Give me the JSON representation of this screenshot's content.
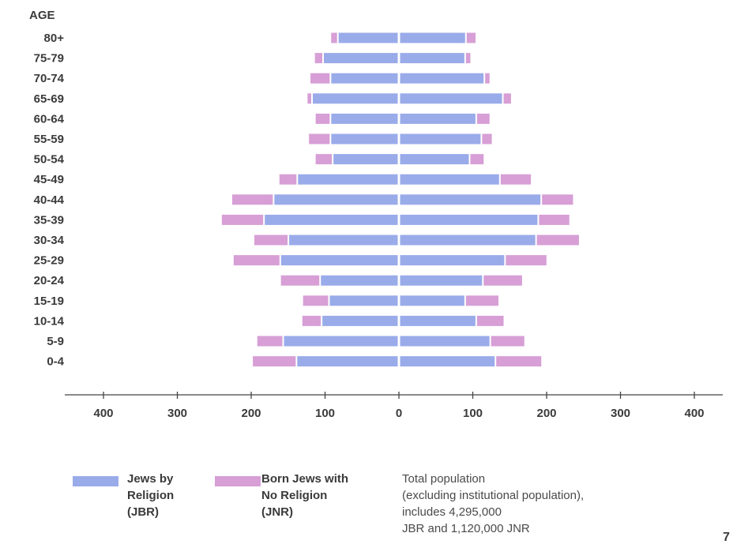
{
  "chart_data": {
    "type": "bar",
    "orientation": "horizontal-pyramid",
    "axis_title": "AGE",
    "categories": [
      "80+",
      "75-79",
      "70-74",
      "65-69",
      "60-64",
      "55-59",
      "50-54",
      "45-49",
      "40-44",
      "35-39",
      "30-34",
      "25-29",
      "20-24",
      "15-19",
      "10-14",
      "5-9",
      "0-4"
    ],
    "series": [
      {
        "name": "Jews by Religion (JBR)",
        "color": "#9aabea",
        "left": [
          80,
          100,
          90,
          115,
          90,
          90,
          87,
          135,
          167,
          180,
          147,
          158,
          104,
          92,
          102,
          154,
          136
        ],
        "right": [
          88,
          87,
          113,
          138,
          102,
          109,
          93,
          134,
          190,
          186,
          183,
          141,
          111,
          87,
          102,
          121,
          128
        ]
      },
      {
        "name": "Born Jews with No Religion (JNR)",
        "color": "#d79fd6",
        "left": [
          8,
          10,
          26,
          5,
          19,
          28,
          22,
          23,
          55,
          56,
          45,
          62,
          52,
          34,
          25,
          34,
          58
        ],
        "right": [
          12,
          6,
          6,
          10,
          17,
          13,
          18,
          41,
          42,
          41,
          57,
          55,
          52,
          44,
          36,
          45,
          61
        ]
      }
    ],
    "xticks": [
      "400",
      "300",
      "200",
      "100",
      "0",
      "100",
      "200",
      "300",
      "400"
    ],
    "xlim": [
      -400,
      400
    ]
  },
  "legend": {
    "jbr": {
      "lines": [
        "Jews by",
        "Religion",
        "(JBR)"
      ],
      "color": "#9aabea"
    },
    "jnr": {
      "lines": [
        "Born Jews with",
        "No Religion",
        "(JNR)"
      ],
      "color": "#d79fd6"
    }
  },
  "note": {
    "lines": [
      "Total population",
      "(excluding institutional population),",
      "includes 4,295,000",
      "JBR and 1,120,000 JNR"
    ]
  },
  "page_number": "7"
}
